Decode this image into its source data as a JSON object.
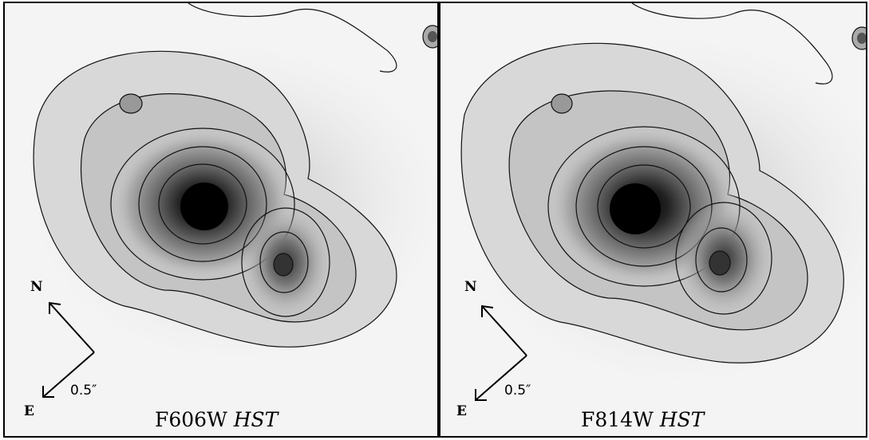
{
  "panels": [
    {
      "filter": "F606W",
      "telescope": "HST"
    },
    {
      "filter": "F814W",
      "telescope": "HST"
    }
  ],
  "compass": {
    "north": "N",
    "east": "E"
  },
  "scale_bar": {
    "label": "0.5″"
  },
  "colors": {
    "frame": "#000000",
    "contour": "#111111",
    "background": "#f4f4f4"
  }
}
